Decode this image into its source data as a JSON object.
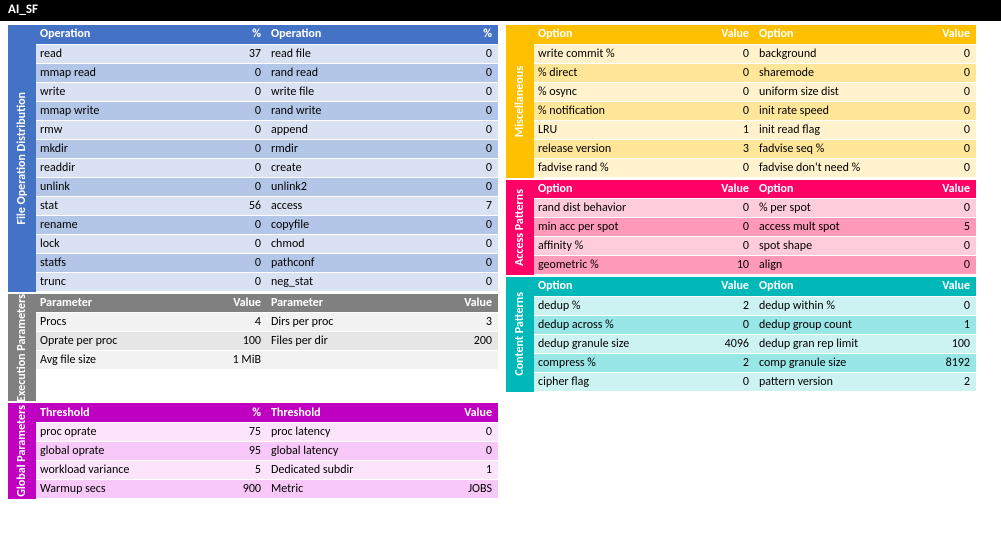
{
  "title": "AI_SF",
  "file_ops": {
    "tab": "File Operation Distribution",
    "headers": [
      "Operation",
      "%",
      "Operation",
      "%"
    ],
    "rows": [
      [
        "read",
        "37",
        "read file",
        "0"
      ],
      [
        "mmap read",
        "0",
        "rand read",
        "0"
      ],
      [
        "write",
        "0",
        "write file",
        "0"
      ],
      [
        "mmap write",
        "0",
        "rand write",
        "0"
      ],
      [
        "rmw",
        "0",
        "append",
        "0"
      ],
      [
        "mkdir",
        "0",
        "rmdir",
        "0"
      ],
      [
        "readdir",
        "0",
        "create",
        "0"
      ],
      [
        "unlink",
        "0",
        "unlink2",
        "0"
      ],
      [
        "stat",
        "56",
        "access",
        "7"
      ],
      [
        "rename",
        "0",
        "copyfile",
        "0"
      ],
      [
        "lock",
        "0",
        "chmod",
        "0"
      ],
      [
        "statfs",
        "0",
        "pathconf",
        "0"
      ],
      [
        "trunc",
        "0",
        "neg_stat",
        "0"
      ]
    ]
  },
  "exec": {
    "tab": "Execution\nParameters",
    "headers": [
      "Parameter",
      "Value",
      "Parameter",
      "Value"
    ],
    "rows": [
      [
        "Procs",
        "4",
        "Dirs per proc",
        "3"
      ],
      [
        "Oprate per proc",
        "100",
        "Files per dir",
        "200"
      ],
      [
        "Avg file size",
        "1 MiB",
        "",
        ""
      ]
    ]
  },
  "glob": {
    "tab": "Global\nParameters",
    "headers": [
      "Threshold",
      "%",
      "Threshold",
      "Value"
    ],
    "rows": [
      [
        "proc oprate",
        "75",
        "proc latency",
        "0"
      ],
      [
        "global oprate",
        "95",
        "global latency",
        "0"
      ],
      [
        "workload variance",
        "5",
        "Dedicated subdir",
        "1"
      ],
      [
        "Warmup secs",
        "900",
        "Metric",
        "JOBS"
      ]
    ]
  },
  "misc": {
    "tab": "Miscellaneous",
    "headers": [
      "Option",
      "Value",
      "Option",
      "Value"
    ],
    "rows": [
      [
        "write commit %",
        "0",
        "background",
        "0"
      ],
      [
        "% direct",
        "0",
        "sharemode",
        "0"
      ],
      [
        "% osync",
        "0",
        "uniform size dist",
        "0"
      ],
      [
        "% notification",
        "0",
        "init rate speed",
        "0"
      ],
      [
        "LRU",
        "1",
        "init read flag",
        "0"
      ],
      [
        "release version",
        "3",
        "fadvise seq %",
        "0"
      ],
      [
        "fadvise rand %",
        "0",
        "fadvise don't need %",
        "0"
      ]
    ]
  },
  "acc": {
    "tab": "Access Patterns",
    "headers": [
      "Option",
      "Value",
      "Option",
      "Value"
    ],
    "rows": [
      [
        "rand dist behavior",
        "0",
        "% per spot",
        "0"
      ],
      [
        "min acc per spot",
        "0",
        "access mult spot",
        "5"
      ],
      [
        "affinity %",
        "0",
        "spot shape",
        "0"
      ],
      [
        "geometric %",
        "10",
        "align",
        "0"
      ]
    ]
  },
  "cont": {
    "tab": "Content Patterns",
    "headers": [
      "Option",
      "Value",
      "Option",
      "Value"
    ],
    "rows": [
      [
        "dedup %",
        "2",
        "dedup within %",
        "0"
      ],
      [
        "dedup across %",
        "0",
        "dedup group count",
        "1"
      ],
      [
        "dedup granule size",
        "4096",
        "dedup gran rep limit",
        "100"
      ],
      [
        "compress %",
        "2",
        "comp granule size",
        "8192"
      ],
      [
        "cipher flag",
        "0",
        "pattern version",
        "2"
      ]
    ]
  },
  "colwidths": {
    "left": [
      "120px",
      "70px",
      "120px",
      "70px"
    ],
    "right": [
      "130px",
      "60px",
      "130px",
      "60px"
    ]
  }
}
